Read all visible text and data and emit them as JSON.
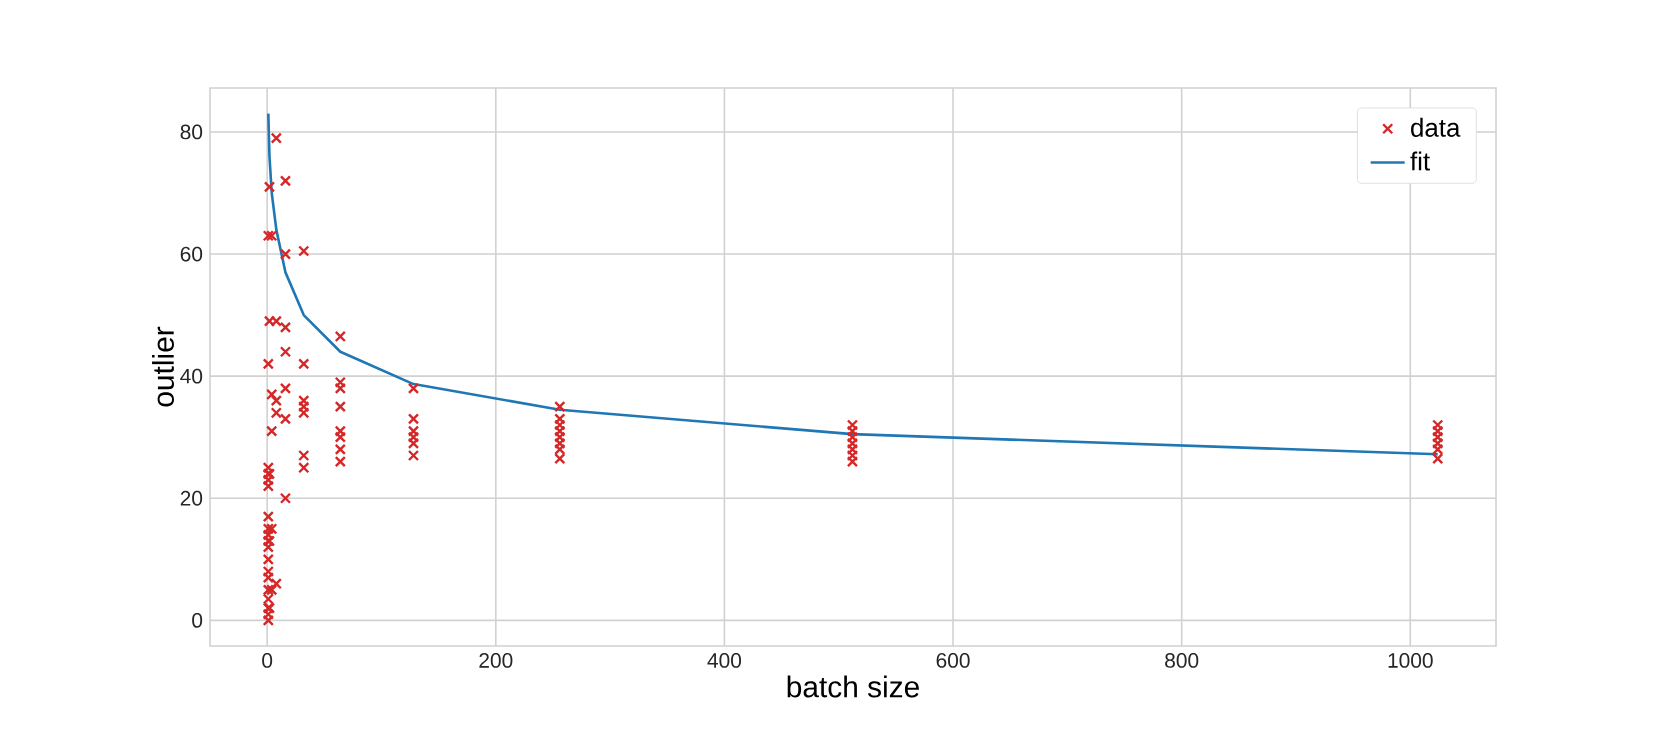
{
  "chart_data": {
    "type": "scatter",
    "xlabel": "batch size",
    "ylabel": "outlier",
    "xlim": [
      -50,
      1075
    ],
    "ylim": [
      -4.2,
      87.2
    ],
    "xticks": [
      0,
      200,
      400,
      600,
      800,
      1000
    ],
    "yticks": [
      0,
      20,
      40,
      60,
      80
    ],
    "grid": true,
    "legend": "top right",
    "series": [
      {
        "name": "data",
        "marker": "cross",
        "color": "#d62728",
        "x": [
          1,
          1,
          1,
          1,
          1,
          1,
          1,
          1,
          1,
          1,
          1,
          1,
          1,
          1,
          1,
          1,
          1,
          1,
          1,
          2,
          2,
          2,
          2,
          2,
          4,
          4,
          4,
          4,
          4,
          8,
          8,
          8,
          8,
          8,
          16,
          16,
          16,
          16,
          16,
          16,
          16,
          32,
          32,
          32,
          32,
          32,
          32,
          32,
          64,
          64,
          64,
          64,
          64,
          64,
          64,
          64,
          128,
          128,
          128,
          128,
          128,
          128,
          256,
          256,
          256,
          256,
          256,
          256,
          256,
          256,
          512,
          512,
          512,
          512,
          512,
          512,
          512,
          1024,
          1024,
          1024,
          1024,
          1024,
          1024
        ],
        "values": [
          0,
          1,
          2,
          3.5,
          5,
          7,
          8,
          10,
          12,
          13,
          14,
          15,
          17,
          22,
          23,
          24,
          25,
          42,
          63,
          2,
          13,
          24,
          49,
          71,
          5,
          15,
          31,
          37,
          63,
          6,
          34,
          36,
          49,
          79,
          20,
          33,
          38,
          44,
          48,
          60,
          72,
          25,
          27,
          34,
          35,
          36,
          42,
          60.5,
          26,
          28,
          30,
          31,
          35,
          38,
          39,
          46.5,
          27,
          29,
          30,
          31,
          33,
          38,
          26.5,
          28,
          29,
          30,
          31,
          32,
          33,
          35,
          26,
          27,
          28,
          29,
          30,
          31,
          32,
          26.5,
          28,
          29,
          30,
          31,
          32
        ]
      },
      {
        "name": "fit",
        "type": "line",
        "marker": "none",
        "line_style": "solid",
        "color": "#1f77b4",
        "x": [
          1,
          2,
          4,
          8,
          16,
          32,
          64,
          128,
          256,
          512,
          1024
        ],
        "values": [
          83,
          76,
          70,
          64,
          57,
          50,
          44,
          38.7,
          34.5,
          30.5,
          27.2
        ]
      }
    ]
  }
}
